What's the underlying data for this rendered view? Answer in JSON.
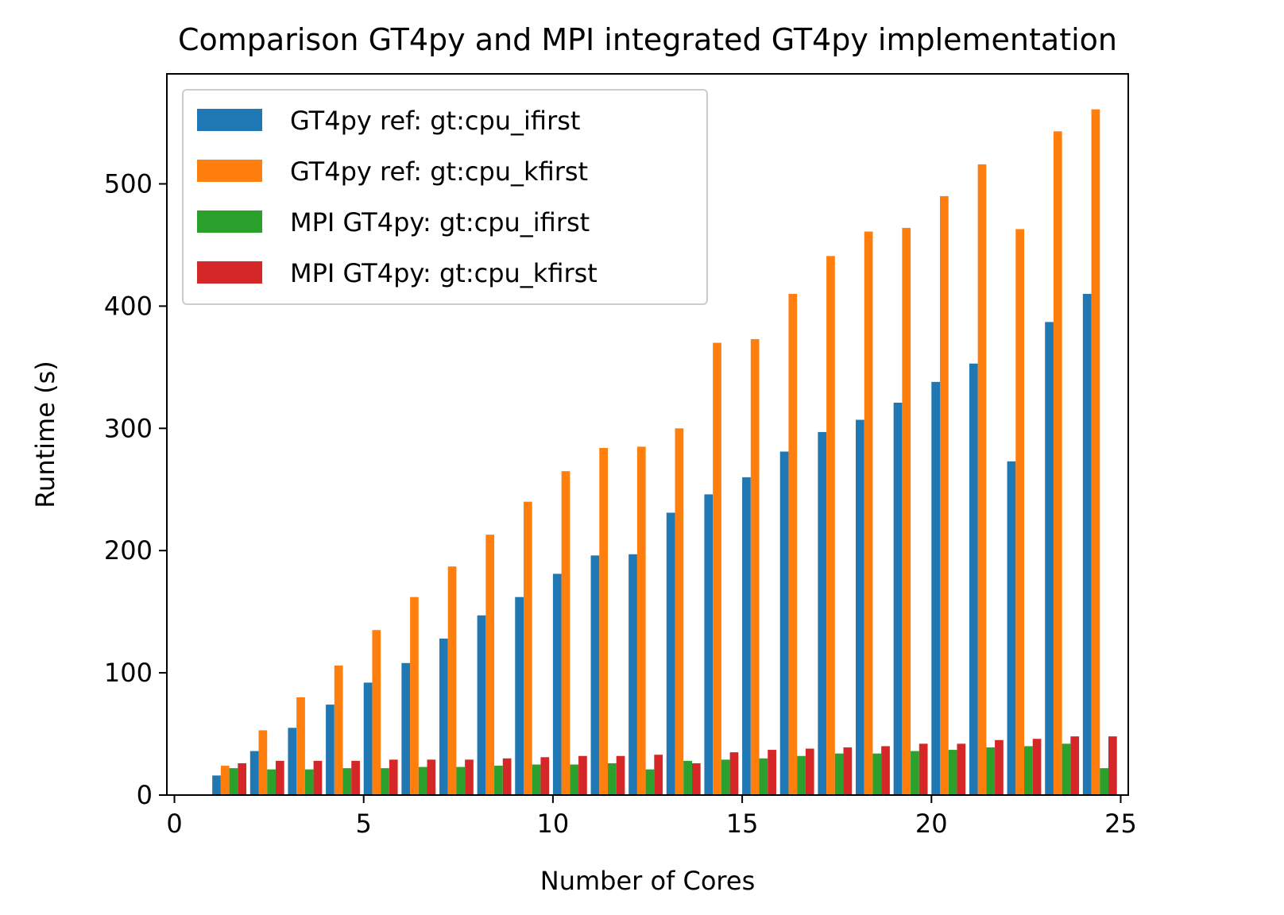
{
  "chart_data": {
    "type": "bar",
    "title": "Comparison GT4py and MPI integrated GT4py implementation",
    "xlabel": "Number of Cores",
    "ylabel": "Runtime (s)",
    "xlim": [
      -0.2,
      25.2
    ],
    "ylim": [
      0,
      590
    ],
    "xticks": [
      0,
      5,
      10,
      15,
      20,
      25
    ],
    "yticks": [
      0,
      100,
      200,
      300,
      400,
      500
    ],
    "grid": false,
    "legend_position": "upper-left",
    "x": [
      1,
      2,
      3,
      4,
      5,
      6,
      7,
      8,
      9,
      10,
      11,
      12,
      13,
      14,
      15,
      16,
      17,
      18,
      19,
      20,
      21,
      22,
      23,
      24
    ],
    "series": [
      {
        "name": "GT4py ref: gt:cpu_ifirst",
        "color": "#1f77b4",
        "values": [
          16,
          36,
          55,
          74,
          92,
          108,
          128,
          147,
          162,
          181,
          196,
          197,
          231,
          246,
          260,
          281,
          297,
          307,
          321,
          338,
          353,
          273,
          387,
          410
        ]
      },
      {
        "name": "GT4py ref: gt:cpu_kfirst",
        "color": "#ff7f0e",
        "values": [
          24,
          53,
          80,
          106,
          135,
          162,
          187,
          213,
          240,
          265,
          284,
          285,
          300,
          370,
          373,
          410,
          441,
          461,
          464,
          490,
          516,
          463,
          543,
          561
        ]
      },
      {
        "name": "MPI GT4py: gt:cpu_ifirst",
        "color": "#2ca02c",
        "values": [
          22,
          21,
          21,
          22,
          22,
          23,
          23,
          24,
          25,
          25,
          26,
          21,
          28,
          29,
          30,
          32,
          34,
          34,
          36,
          37,
          39,
          40,
          42,
          22
        ]
      },
      {
        "name": "MPI GT4py: gt:cpu_kfirst",
        "color": "#d62728",
        "values": [
          26,
          28,
          28,
          28,
          29,
          29,
          29,
          30,
          31,
          32,
          32,
          33,
          26,
          35,
          37,
          38,
          39,
          40,
          42,
          42,
          45,
          46,
          48,
          48
        ]
      }
    ]
  }
}
